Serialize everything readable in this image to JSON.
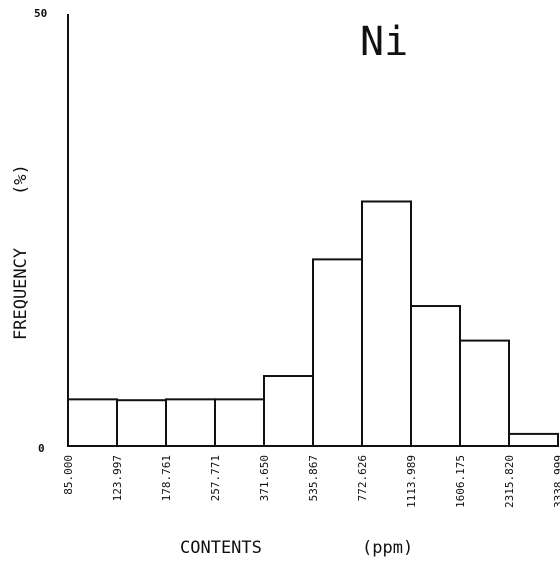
{
  "chart_data": {
    "type": "bar",
    "title": "Ni",
    "xlabel": "CONTENTS",
    "xunit": "(ppm)",
    "ylabel": "FREQUENCY",
    "yunit": "(%)",
    "ylim": [
      0,
      50
    ],
    "y_ticks": [
      "50",
      "0"
    ],
    "bin_edges": [
      "85.000",
      "123.997",
      "178.761",
      "257.771",
      "371.650",
      "535.867",
      "772.626",
      "1113.989",
      "1606.175",
      "2315.820",
      "3338.999"
    ],
    "values": [
      5.4,
      5.3,
      5.4,
      5.4,
      8.1,
      21.6,
      28.3,
      16.2,
      12.2,
      1.4
    ],
    "grid": false,
    "legend": "none"
  }
}
